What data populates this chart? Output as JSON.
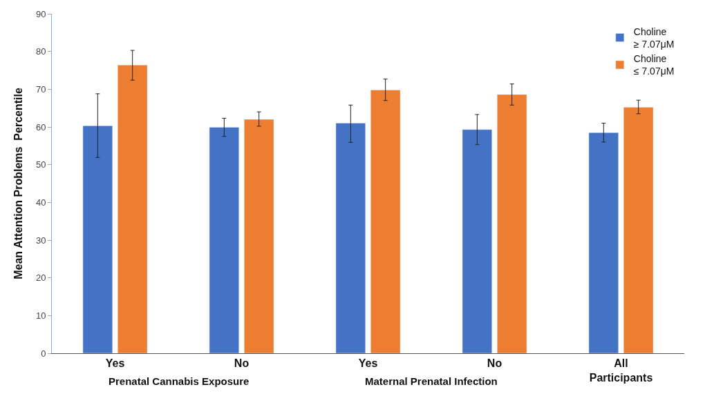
{
  "chart_data": {
    "type": "bar",
    "ylabel": "Mean Attention Problems  Percentile",
    "categories": [
      "Yes",
      "No",
      "Yes",
      "No",
      "All Participants"
    ],
    "series": [
      {
        "name": "Choline ≥ 7.07μM",
        "color": "#4472c4",
        "values": [
          60.3,
          59.9,
          61.0,
          59.3,
          58.5
        ],
        "errors": [
          [
            51.9,
            68.8
          ],
          [
            57.5,
            62.3
          ],
          [
            55.9,
            65.8
          ],
          [
            55.3,
            63.3
          ],
          [
            56.0,
            61.0
          ]
        ]
      },
      {
        "name": "Choline ≤ 7.07μM",
        "color": "#ed7d31",
        "values": [
          76.4,
          62.0,
          69.8,
          68.6,
          65.2
        ],
        "errors": [
          [
            72.4,
            80.3
          ],
          [
            60.2,
            64.0
          ],
          [
            67.0,
            72.7
          ],
          [
            65.8,
            71.4
          ],
          [
            63.5,
            67.1
          ]
        ]
      }
    ],
    "annotations": [
      "Prenatal Cannabis Exposure",
      "Maternal Prenatal Infection"
    ],
    "ylim": [
      0,
      90
    ],
    "yticks": [
      0,
      10,
      20,
      30,
      40,
      50,
      60,
      70,
      80,
      90
    ],
    "legend": "top right"
  }
}
